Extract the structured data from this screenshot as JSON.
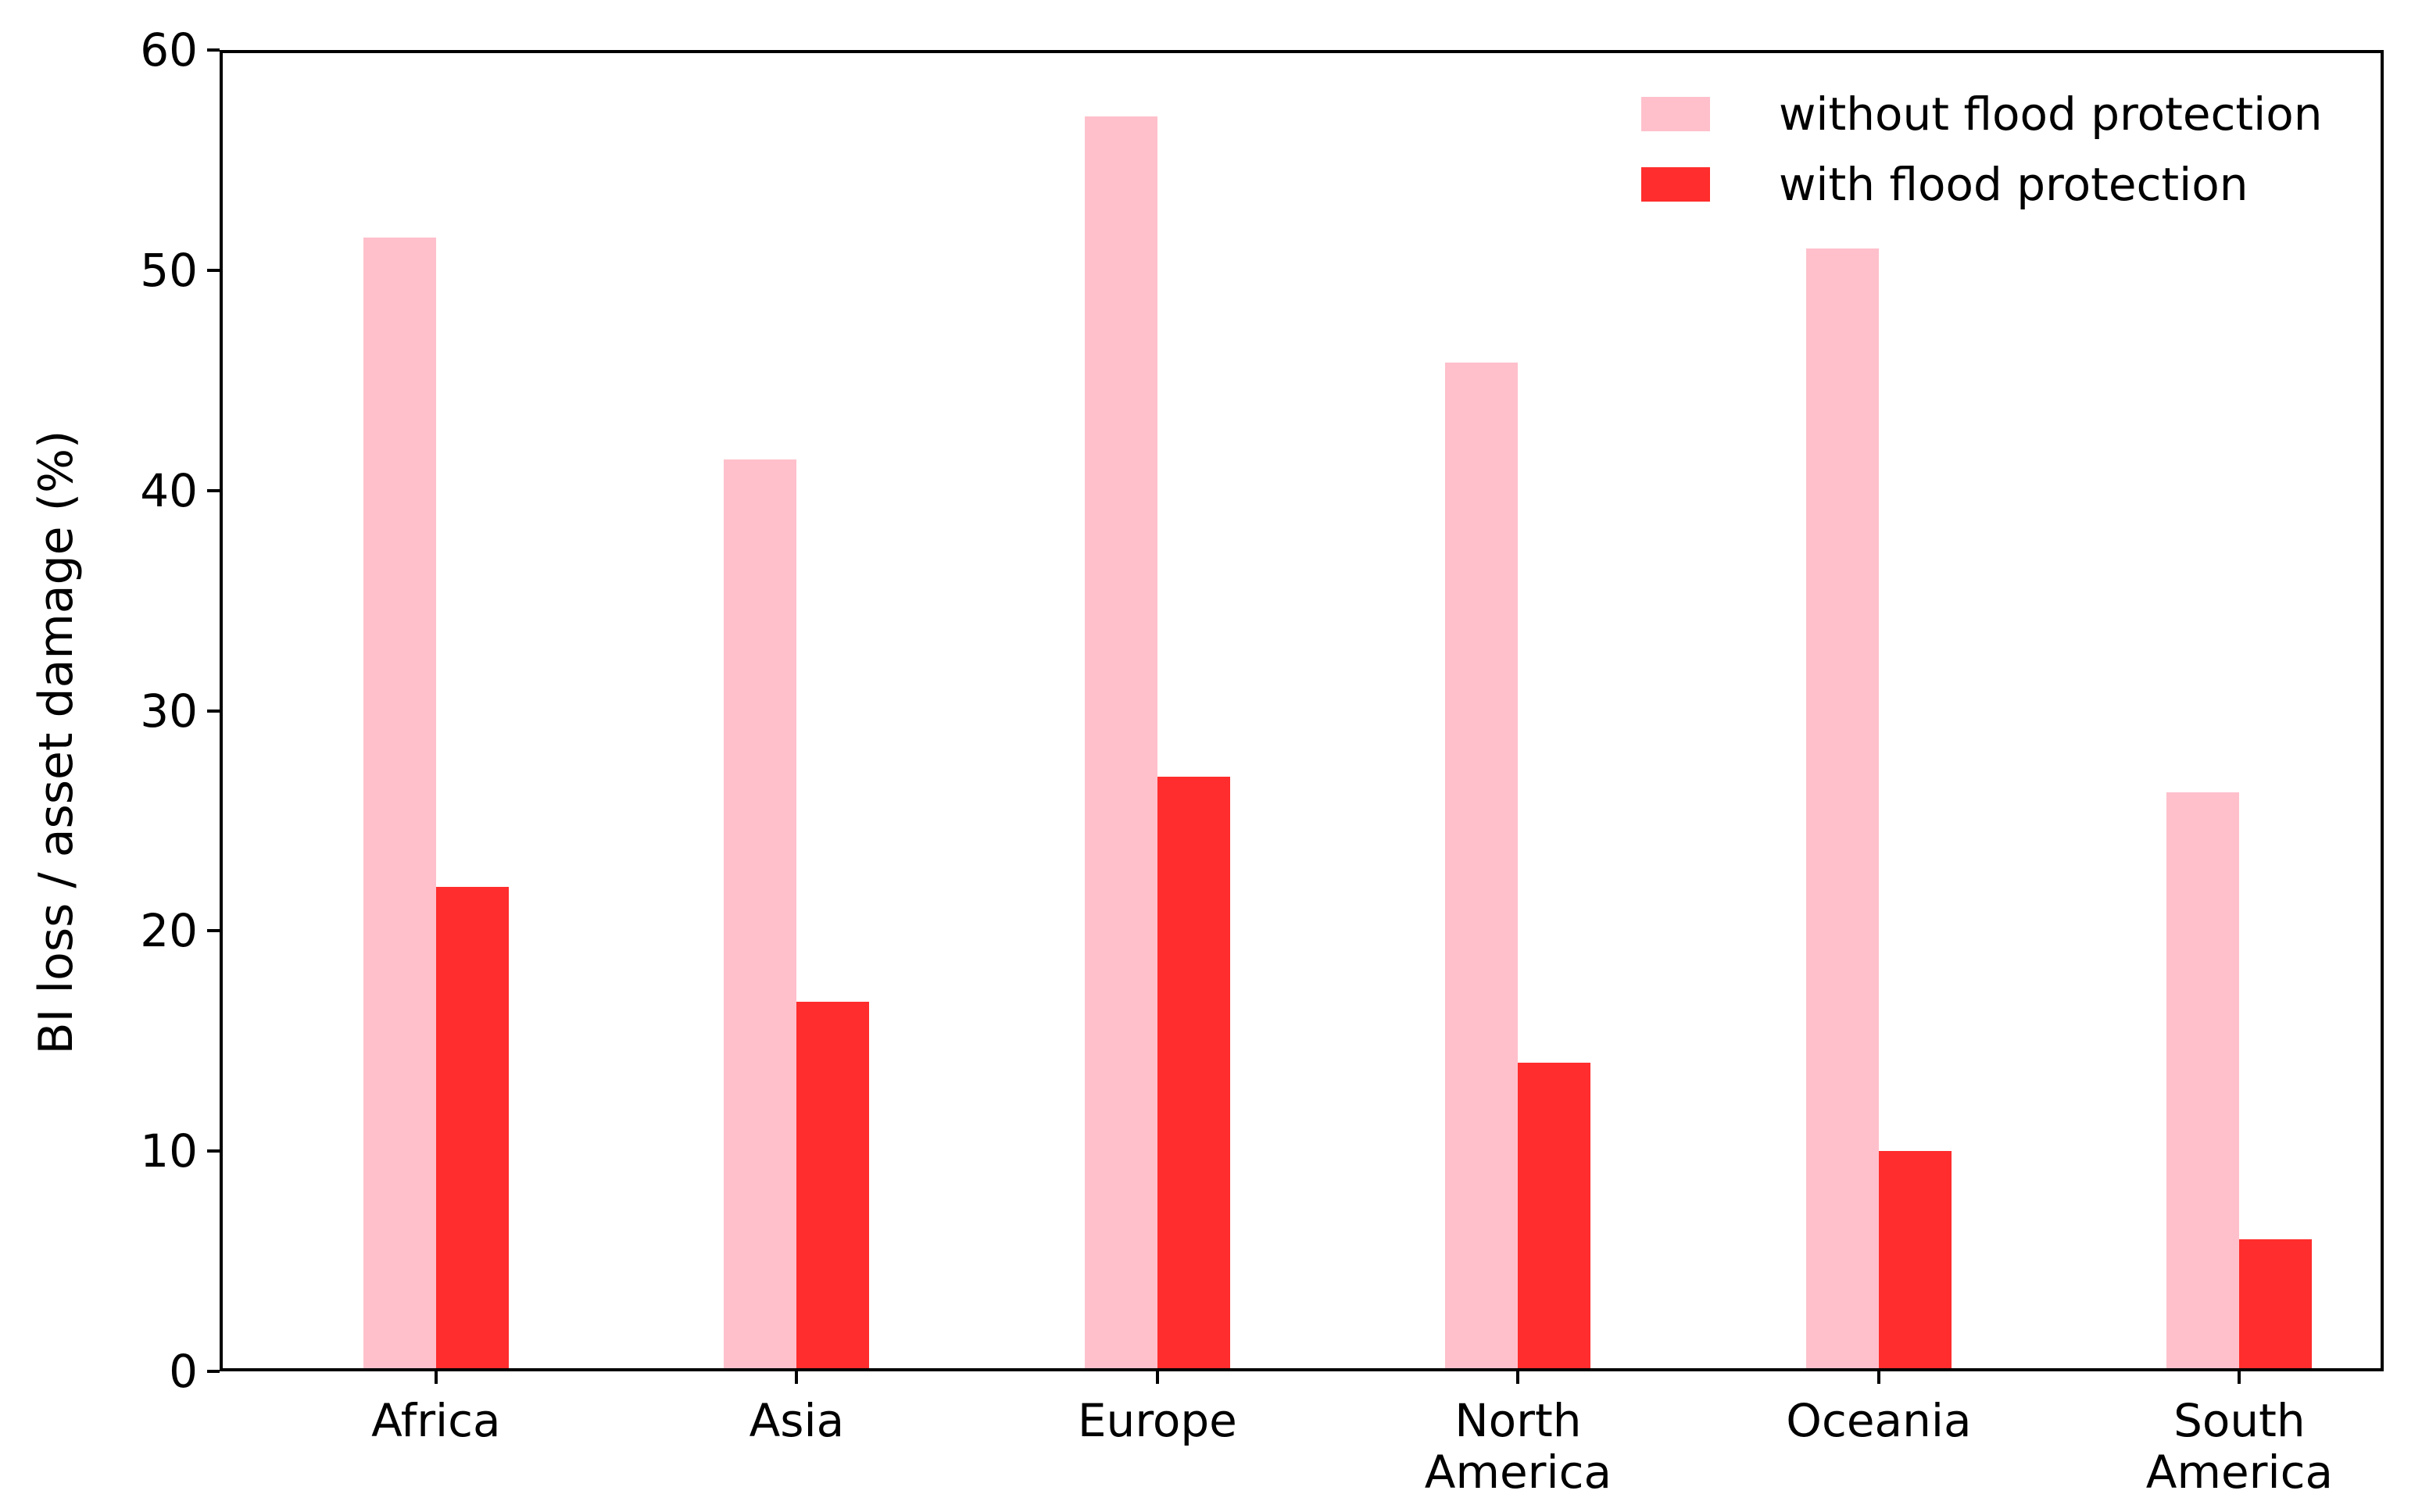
{
  "chart_data": {
    "type": "bar",
    "title": "",
    "categories": [
      "Africa",
      "Asia",
      "Europe",
      "North America",
      "Oceania",
      "South America"
    ],
    "series": [
      {
        "name": "without flood protection",
        "color": "#ffc0cb",
        "values": [
          51.5,
          41.4,
          57,
          45.8,
          51,
          26.3
        ]
      },
      {
        "name": "with flood protection",
        "color": "#ff2d2d",
        "values": [
          22,
          16.8,
          27,
          14,
          10,
          6
        ]
      }
    ],
    "xlabel": "",
    "ylabel": "BI loss / asset damage (%)",
    "ylim": [
      0,
      60
    ],
    "ytick_values": [
      0,
      10,
      20,
      30,
      40,
      50,
      60
    ],
    "grid": false,
    "legend_position": "upper right",
    "axis_color": "#000000",
    "background_color": "#ffffff"
  }
}
